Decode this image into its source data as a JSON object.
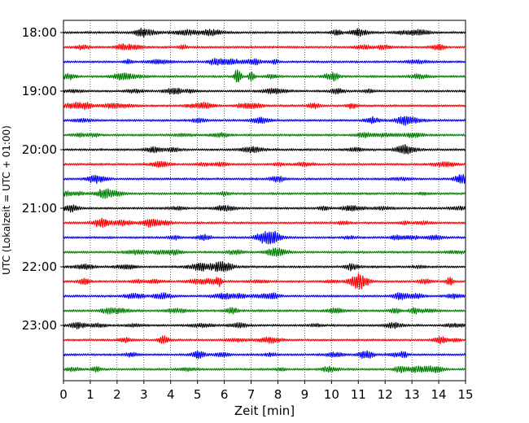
{
  "chart_data": {
    "type": "line",
    "title": "",
    "xlabel": "Zeit  [min]",
    "ylabel": "UTC (Lokalzeit = UTC + 01:00)",
    "xlim": [
      0,
      15
    ],
    "x_ticks": [
      "0",
      "1",
      "2",
      "3",
      "4",
      "5",
      "6",
      "7",
      "8",
      "9",
      "10",
      "11",
      "12",
      "13",
      "14",
      "15"
    ],
    "y_ticks": [
      {
        "label": "18:00",
        "trace": 0
      },
      {
        "label": "19:00",
        "trace": 4
      },
      {
        "label": "20:00",
        "trace": 8
      },
      {
        "label": "21:00",
        "trace": 12
      },
      {
        "label": "22:00",
        "trace": 16
      },
      {
        "label": "23:00",
        "trace": 20
      }
    ],
    "trace_interval_minutes": 15,
    "trace_count": 24,
    "trace_colors": [
      "#000000",
      "#ff0000",
      "#0000ff",
      "#007f00"
    ],
    "grid": "vertical-dotted",
    "events": [
      {
        "trace": 3,
        "minute": 6.5,
        "amplitude": "large"
      },
      {
        "trace": 3,
        "minute": 7.0,
        "amplitude": "medium"
      },
      {
        "trace": 22,
        "minute": 12.7,
        "amplitude": "medium"
      },
      {
        "trace": 17,
        "minute": 14.4,
        "amplitude": "medium"
      },
      {
        "trace": 17,
        "minute": 5.8,
        "amplitude": "medium"
      }
    ]
  }
}
